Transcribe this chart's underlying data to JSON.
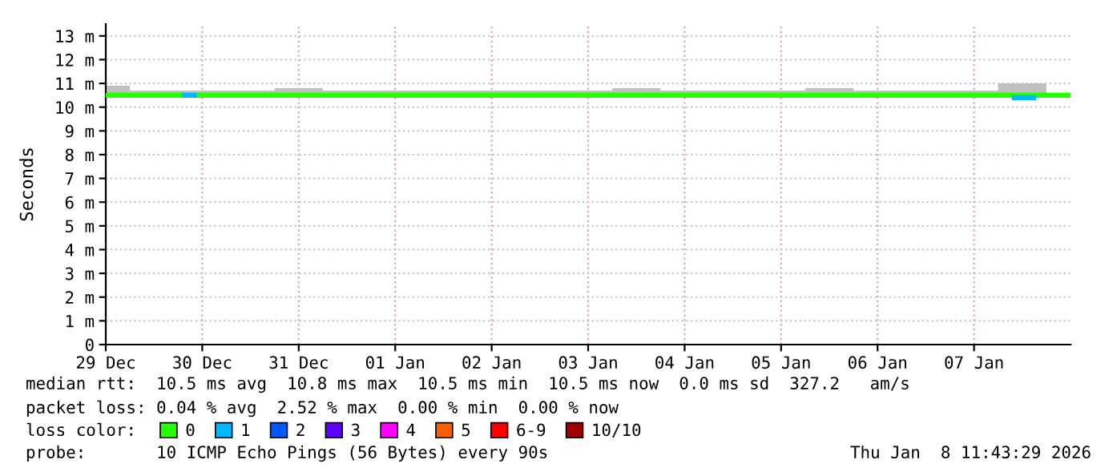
{
  "chart_data": {
    "type": "line",
    "ylabel": "Seconds",
    "legend_title": "loss color:",
    "legend": "bottom",
    "grid": true,
    "marker": "none",
    "line_style": "solid",
    "xlim": [
      "2025-12-29T00:00",
      "2026-01-08T00:00"
    ],
    "xticks": [
      {
        "value": "2025-12-29",
        "label": "29 Dec"
      },
      {
        "value": "2025-12-30",
        "label": "30 Dec"
      },
      {
        "value": "2025-12-31",
        "label": "31 Dec"
      },
      {
        "value": "2026-01-01",
        "label": "01 Jan"
      },
      {
        "value": "2026-01-02",
        "label": "02 Jan"
      },
      {
        "value": "2026-01-03",
        "label": "03 Jan"
      },
      {
        "value": "2026-01-04",
        "label": "04 Jan"
      },
      {
        "value": "2026-01-05",
        "label": "05 Jan"
      },
      {
        "value": "2026-01-06",
        "label": "06 Jan"
      },
      {
        "value": "2026-01-07",
        "label": "07 Jan"
      }
    ],
    "ylim": [
      0,
      13.5
    ],
    "yticks": [
      0,
      {
        "value": 1,
        "label": "1 m"
      },
      {
        "value": 2,
        "label": "2 m"
      },
      {
        "value": 3,
        "label": "3 m"
      },
      {
        "value": 4,
        "label": "4 m"
      },
      {
        "value": 5,
        "label": "5 m"
      },
      {
        "value": 6,
        "label": "6 m"
      },
      {
        "value": 7,
        "label": "7 m"
      },
      {
        "value": 8,
        "label": "8 m"
      },
      {
        "value": 9,
        "label": "9 m"
      },
      {
        "value": 10,
        "label": "10 m"
      },
      {
        "value": 11,
        "label": "11 m"
      },
      {
        "value": 12,
        "label": "12 m"
      },
      {
        "value": 13,
        "label": "13 m"
      }
    ],
    "series": [
      {
        "name": "0",
        "color": "#26ff00",
        "x": [
          "2025-12-29T00:00",
          "2025-12-29T12:00",
          "2025-12-30T00:00",
          "2025-12-30T12:00",
          "2025-12-31T00:00",
          "2025-12-31T12:00",
          "2026-01-01T00:00",
          "2026-01-01T12:00",
          "2026-01-02T00:00",
          "2026-01-02T12:00",
          "2026-01-03T00:00",
          "2026-01-03T12:00",
          "2026-01-04T00:00",
          "2026-01-04T12:00",
          "2026-01-05T00:00",
          "2026-01-05T12:00",
          "2026-01-06T00:00",
          "2026-01-06T12:00",
          "2026-01-07T00:00",
          "2026-01-07T12:00",
          "2026-01-08T00:00"
        ],
        "values": [
          10.5,
          10.5,
          10.5,
          10.5,
          10.5,
          10.5,
          10.5,
          10.5,
          10.5,
          10.5,
          10.5,
          10.5,
          10.5,
          10.5,
          10.5,
          10.5,
          10.5,
          10.5,
          10.5,
          10.5,
          10.5
        ],
        "lower": [
          10.5,
          10.5,
          10.5,
          10.5,
          10.5,
          10.5,
          10.5,
          10.5,
          10.5,
          10.5,
          10.5,
          10.5,
          10.5,
          10.5,
          10.5,
          10.5,
          10.5,
          10.5,
          10.5,
          10.5,
          10.5
        ],
        "upper": [
          10.9,
          10.7,
          10.7,
          10.7,
          10.8,
          10.7,
          10.7,
          10.7,
          10.7,
          10.7,
          10.7,
          10.8,
          10.7,
          10.7,
          10.7,
          10.8,
          10.7,
          10.7,
          10.7,
          11.0,
          10.6
        ]
      },
      {
        "name": "1",
        "color": "#00b8ff",
        "x": [
          "2025-12-29T19:30",
          "2025-12-29T22:00",
          "2025-12-29T23:00",
          "2026-01-07T10:00",
          "2026-01-07T14:50"
        ],
        "values": [
          10.5,
          10.5,
          null,
          10.4,
          10.4
        ]
      },
      {
        "name": "2",
        "color": "#0059ff"
      },
      {
        "name": "3",
        "color": "#5e00ff"
      },
      {
        "name": "4",
        "color": "#ff00ff"
      },
      {
        "name": "5",
        "color": "#ff5e00"
      },
      {
        "name": "6-9",
        "color": "#ff0000"
      },
      {
        "name": "10/10",
        "color": "#a10000"
      }
    ],
    "annotations": [
      "median rtt:  10.5 ms avg  10.8 ms max  10.5 ms min  10.5 ms now  0.0 ms sd  327.2   am/s",
      "packet loss: 0.04 % avg  2.52 % max  0.00 % min  0.00 % now",
      "probe:       10 ICMP Echo Pings (56 Bytes) every 90s",
      "Thu Jan  8 11:43:29 2026"
    ]
  }
}
